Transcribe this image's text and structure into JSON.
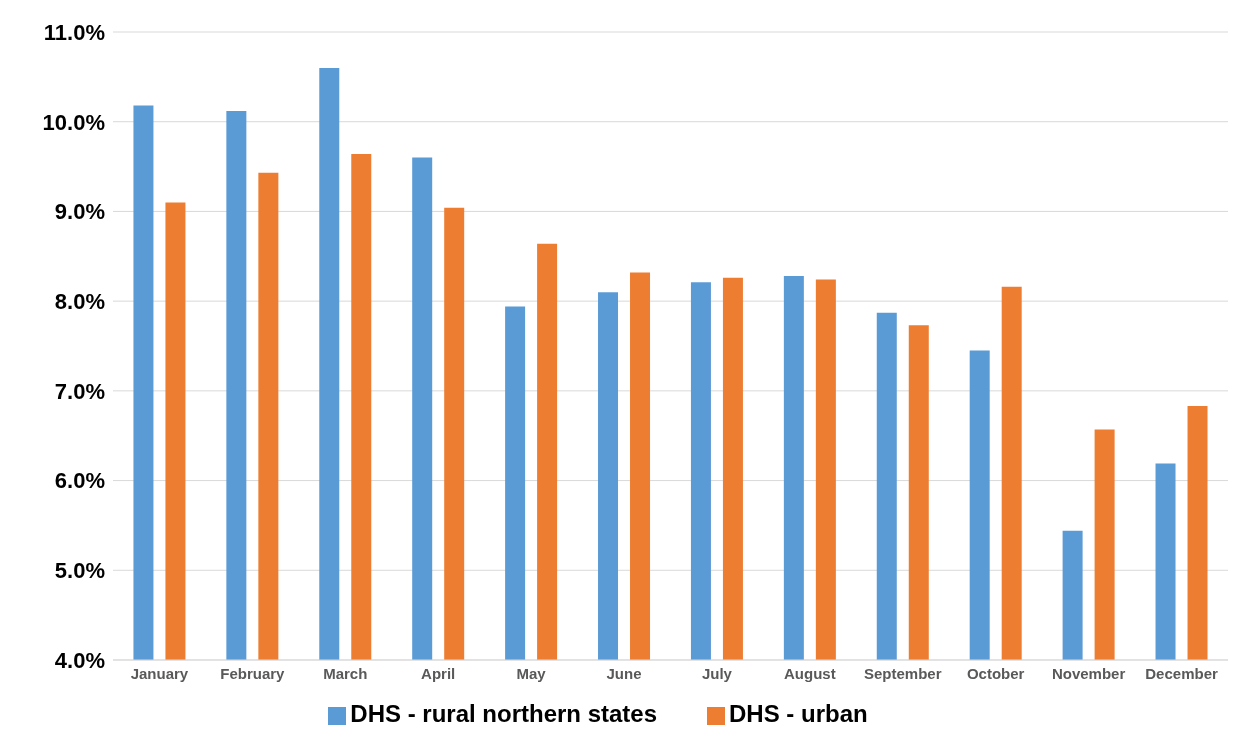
{
  "chart_data": {
    "type": "bar",
    "categories": [
      "January",
      "February",
      "March",
      "April",
      "May",
      "June",
      "July",
      "August",
      "September",
      "October",
      "November",
      "December"
    ],
    "series": [
      {
        "name": "DHS - rural northern states",
        "color": "#5b9bd5",
        "values": [
          10.18,
          10.12,
          10.6,
          9.6,
          7.94,
          8.1,
          8.21,
          8.28,
          7.87,
          7.45,
          5.44,
          6.19
        ]
      },
      {
        "name": "DHS - urban",
        "color": "#ed7d31",
        "values": [
          9.1,
          9.43,
          9.64,
          9.04,
          8.64,
          8.32,
          8.26,
          8.24,
          7.73,
          8.16,
          6.57,
          6.83
        ]
      }
    ],
    "ylim": [
      4,
      11
    ],
    "yticks": [
      {
        "value": 4,
        "label": "4.0%"
      },
      {
        "value": 5,
        "label": "5.0%"
      },
      {
        "value": 6,
        "label": "6.0%"
      },
      {
        "value": 7,
        "label": "7.0%"
      },
      {
        "value": 8,
        "label": "8.0%"
      },
      {
        "value": 9,
        "label": "9.0%"
      },
      {
        "value": 10,
        "label": "10.0%"
      },
      {
        "value": 11,
        "label": "11.0%"
      }
    ],
    "grid": "y",
    "legend": "bottom"
  }
}
